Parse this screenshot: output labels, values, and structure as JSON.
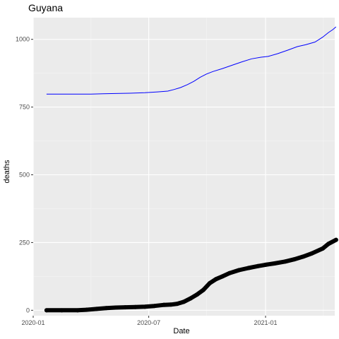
{
  "chart_data": {
    "type": "line",
    "title": "Guyana",
    "xlabel": "Date",
    "ylabel": "deaths",
    "x_ticks": [
      "2020-01",
      "2020-07",
      "2021-01"
    ],
    "y_ticks": [
      0,
      250,
      500,
      750,
      1000
    ],
    "xlim": [
      "2020-01-01",
      "2021-04-20"
    ],
    "ylim": [
      -20,
      1080
    ],
    "grid": true,
    "series": [
      {
        "style": "line",
        "color": "#0000ff",
        "points": [
          [
            "2020-01-22",
            798
          ],
          [
            "2020-02-15",
            798
          ],
          [
            "2020-03-10",
            798
          ],
          [
            "2020-04-01",
            798
          ],
          [
            "2020-04-20",
            799
          ],
          [
            "2020-05-10",
            800
          ],
          [
            "2020-06-01",
            801
          ],
          [
            "2020-06-25",
            803
          ],
          [
            "2020-07-15",
            806
          ],
          [
            "2020-07-31",
            809
          ],
          [
            "2020-08-10",
            815
          ],
          [
            "2020-08-20",
            822
          ],
          [
            "2020-08-31",
            833
          ],
          [
            "2020-09-10",
            845
          ],
          [
            "2020-09-20",
            860
          ],
          [
            "2020-09-30",
            872
          ],
          [
            "2020-10-10",
            881
          ],
          [
            "2020-10-25",
            892
          ],
          [
            "2020-11-10",
            905
          ],
          [
            "2020-11-25",
            917
          ],
          [
            "2020-12-10",
            928
          ],
          [
            "2020-12-25",
            934
          ],
          [
            "2021-01-05",
            937
          ],
          [
            "2021-01-20",
            947
          ],
          [
            "2021-02-05",
            960
          ],
          [
            "2021-02-20",
            973
          ],
          [
            "2021-03-05",
            980
          ],
          [
            "2021-03-20",
            990
          ],
          [
            "2021-04-01",
            1008
          ],
          [
            "2021-04-10",
            1025
          ],
          [
            "2021-04-17",
            1036
          ],
          [
            "2021-04-22",
            1046
          ]
        ]
      },
      {
        "style": "points",
        "color": "#000000",
        "points": [
          [
            "2020-01-22",
            0
          ],
          [
            "2020-02-15",
            0
          ],
          [
            "2020-03-11",
            0
          ],
          [
            "2020-03-25",
            2
          ],
          [
            "2020-04-10",
            5
          ],
          [
            "2020-04-25",
            8
          ],
          [
            "2020-05-10",
            10
          ],
          [
            "2020-05-25",
            11
          ],
          [
            "2020-06-10",
            12
          ],
          [
            "2020-06-25",
            13
          ],
          [
            "2020-07-10",
            16
          ],
          [
            "2020-07-25",
            20
          ],
          [
            "2020-08-05",
            21
          ],
          [
            "2020-08-15",
            24
          ],
          [
            "2020-08-25",
            31
          ],
          [
            "2020-09-05",
            44
          ],
          [
            "2020-09-15",
            58
          ],
          [
            "2020-09-25",
            75
          ],
          [
            "2020-10-05",
            100
          ],
          [
            "2020-10-15",
            115
          ],
          [
            "2020-10-25",
            125
          ],
          [
            "2020-11-05",
            137
          ],
          [
            "2020-11-20",
            148
          ],
          [
            "2020-12-05",
            156
          ],
          [
            "2020-12-20",
            163
          ],
          [
            "2021-01-01",
            168
          ],
          [
            "2021-01-15",
            173
          ],
          [
            "2021-02-01",
            180
          ],
          [
            "2021-02-15",
            188
          ],
          [
            "2021-03-01",
            198
          ],
          [
            "2021-03-15",
            210
          ],
          [
            "2021-04-01",
            228
          ],
          [
            "2021-04-10",
            245
          ],
          [
            "2021-04-22",
            260
          ]
        ]
      }
    ]
  }
}
